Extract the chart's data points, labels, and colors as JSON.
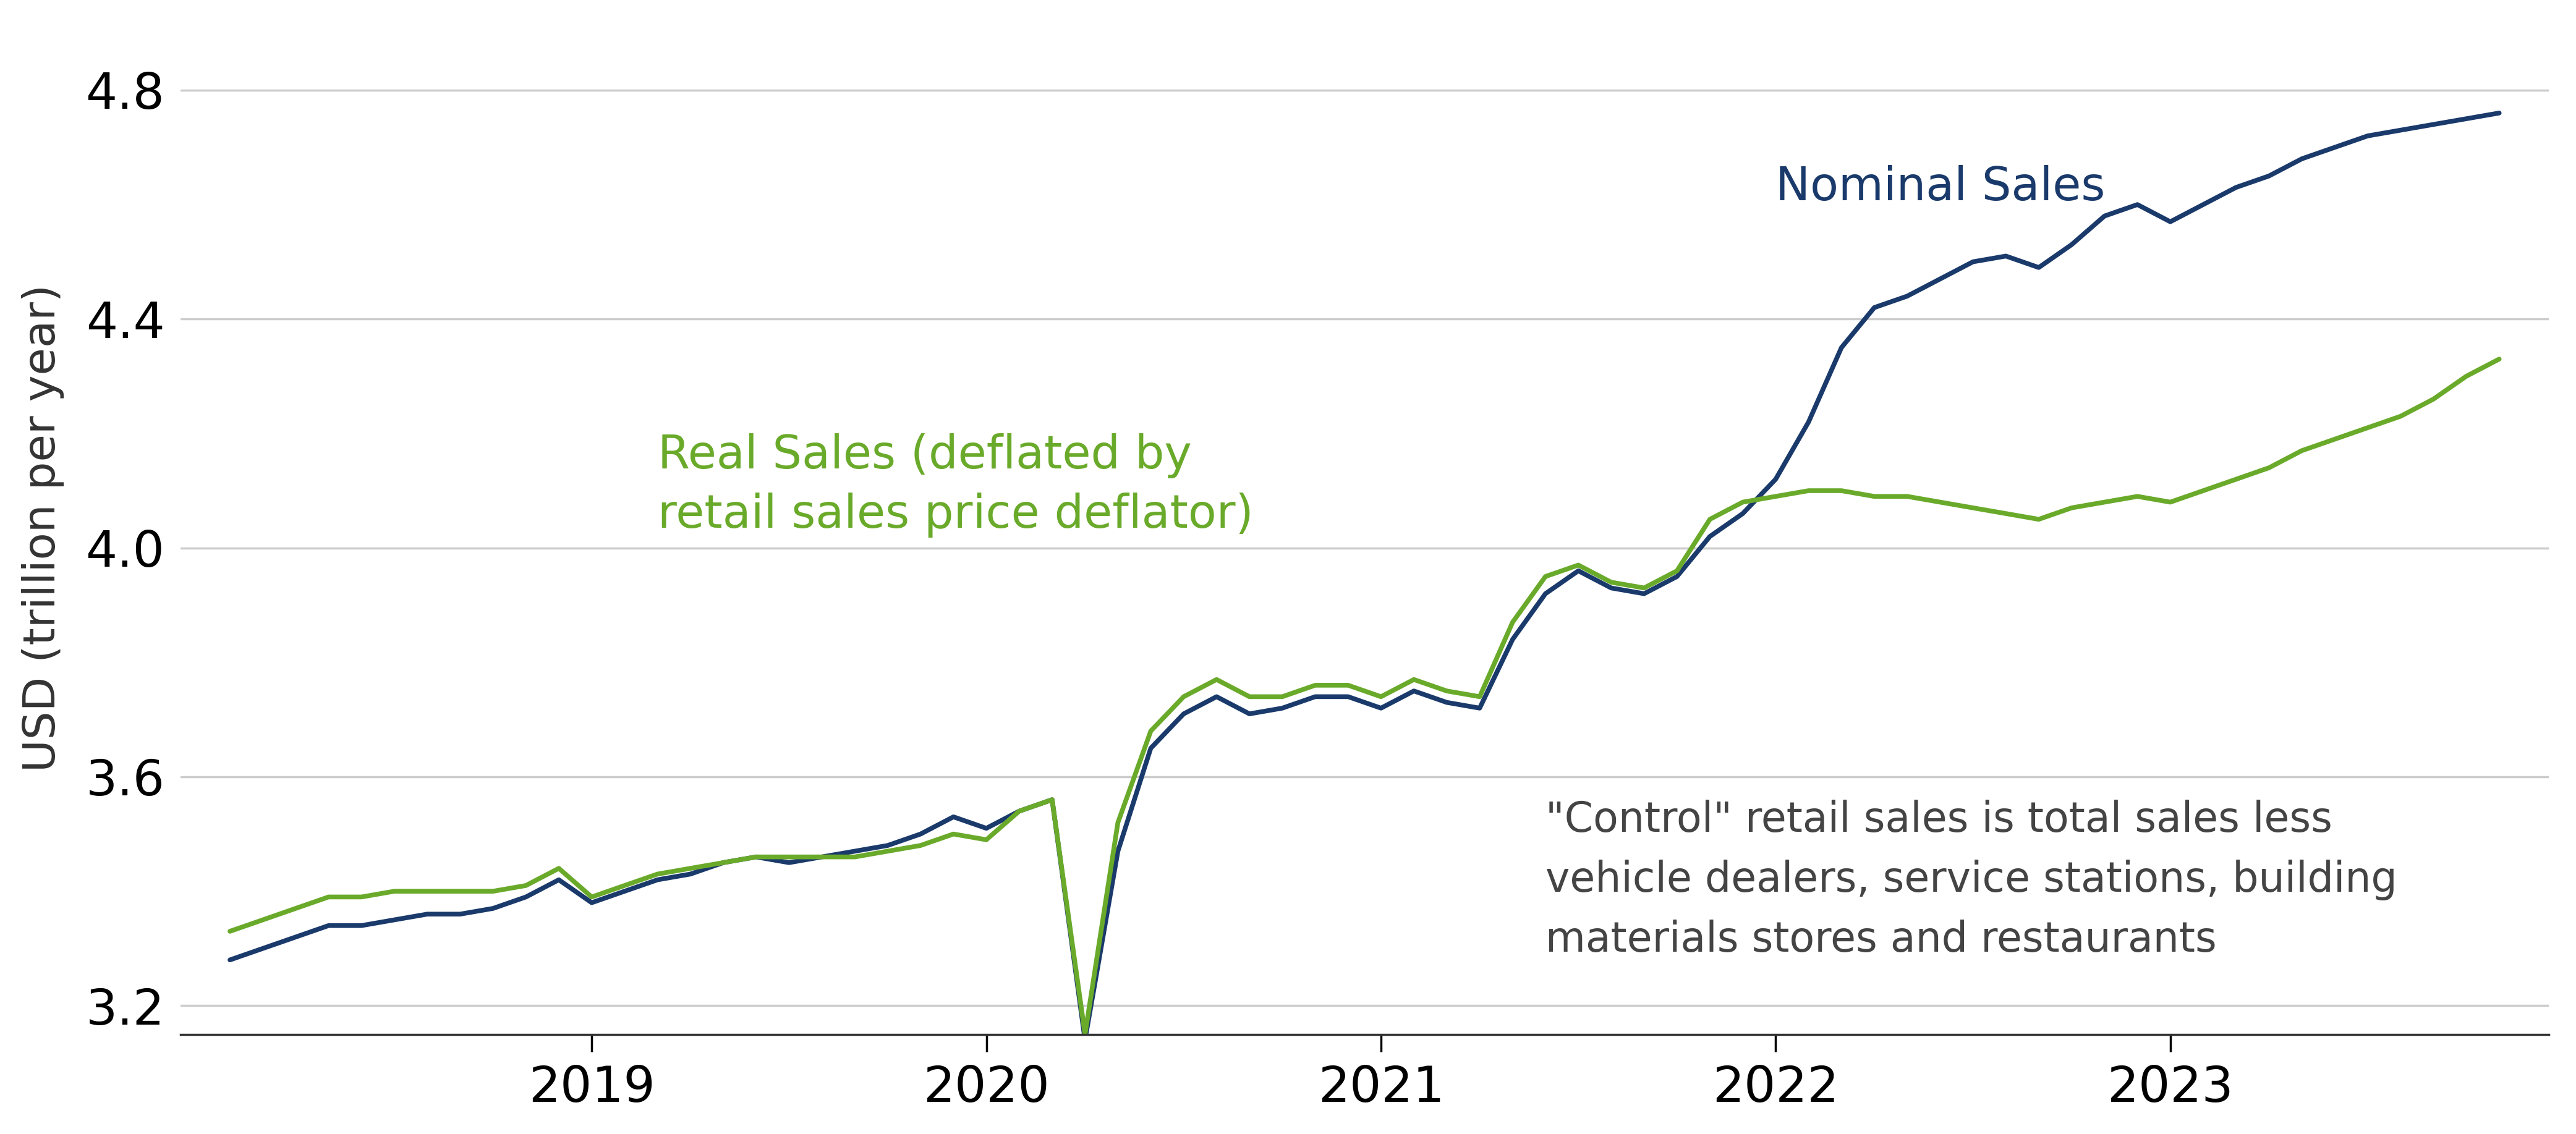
{
  "ylabel": "USD (trillion per year)",
  "nominal_color": "#1a3a6b",
  "real_color": "#6aaa2a",
  "annotation_color": "#444444",
  "background_color": "#ffffff",
  "grid_color": "#cccccc",
  "ylim": [
    3.15,
    4.92
  ],
  "yticks": [
    3.2,
    3.6,
    4.0,
    4.4,
    4.8
  ],
  "nominal_label": "Nominal Sales",
  "real_label": "Real Sales (deflated by\nretail sales price deflator)",
  "annotation_text": "\"Control\" retail sales is total sales less\nvehicle dealers, service stations, building\nmaterials stores and restaurants",
  "line_width": 5.5,
  "nominal_values": [
    3.28,
    3.3,
    3.32,
    3.34,
    3.34,
    3.35,
    3.36,
    3.36,
    3.37,
    3.39,
    3.42,
    3.38,
    3.4,
    3.42,
    3.43,
    3.45,
    3.46,
    3.45,
    3.46,
    3.47,
    3.48,
    3.5,
    3.53,
    3.51,
    3.54,
    3.56,
    3.14,
    3.47,
    3.65,
    3.71,
    3.74,
    3.71,
    3.72,
    3.74,
    3.74,
    3.72,
    3.75,
    3.73,
    3.72,
    3.84,
    3.92,
    3.96,
    3.93,
    3.92,
    3.95,
    4.02,
    4.06,
    4.12,
    4.22,
    4.35,
    4.42,
    4.44,
    4.47,
    4.5,
    4.51,
    4.49,
    4.53,
    4.58,
    4.6,
    4.57,
    4.6,
    4.63,
    4.65,
    4.68,
    4.7,
    4.72,
    4.73,
    4.74,
    4.75,
    4.76
  ],
  "real_values": [
    3.33,
    3.35,
    3.37,
    3.39,
    3.39,
    3.4,
    3.4,
    3.4,
    3.4,
    3.41,
    3.44,
    3.39,
    3.41,
    3.43,
    3.44,
    3.45,
    3.46,
    3.46,
    3.46,
    3.46,
    3.47,
    3.48,
    3.5,
    3.49,
    3.54,
    3.56,
    3.15,
    3.52,
    3.68,
    3.74,
    3.77,
    3.74,
    3.74,
    3.76,
    3.76,
    3.74,
    3.77,
    3.75,
    3.74,
    3.87,
    3.95,
    3.97,
    3.94,
    3.93,
    3.96,
    4.05,
    4.08,
    4.09,
    4.1,
    4.1,
    4.09,
    4.09,
    4.08,
    4.07,
    4.06,
    4.05,
    4.07,
    4.08,
    4.09,
    4.08,
    4.1,
    4.12,
    4.14,
    4.17,
    4.19,
    4.21,
    4.23,
    4.26,
    4.3,
    4.33
  ]
}
